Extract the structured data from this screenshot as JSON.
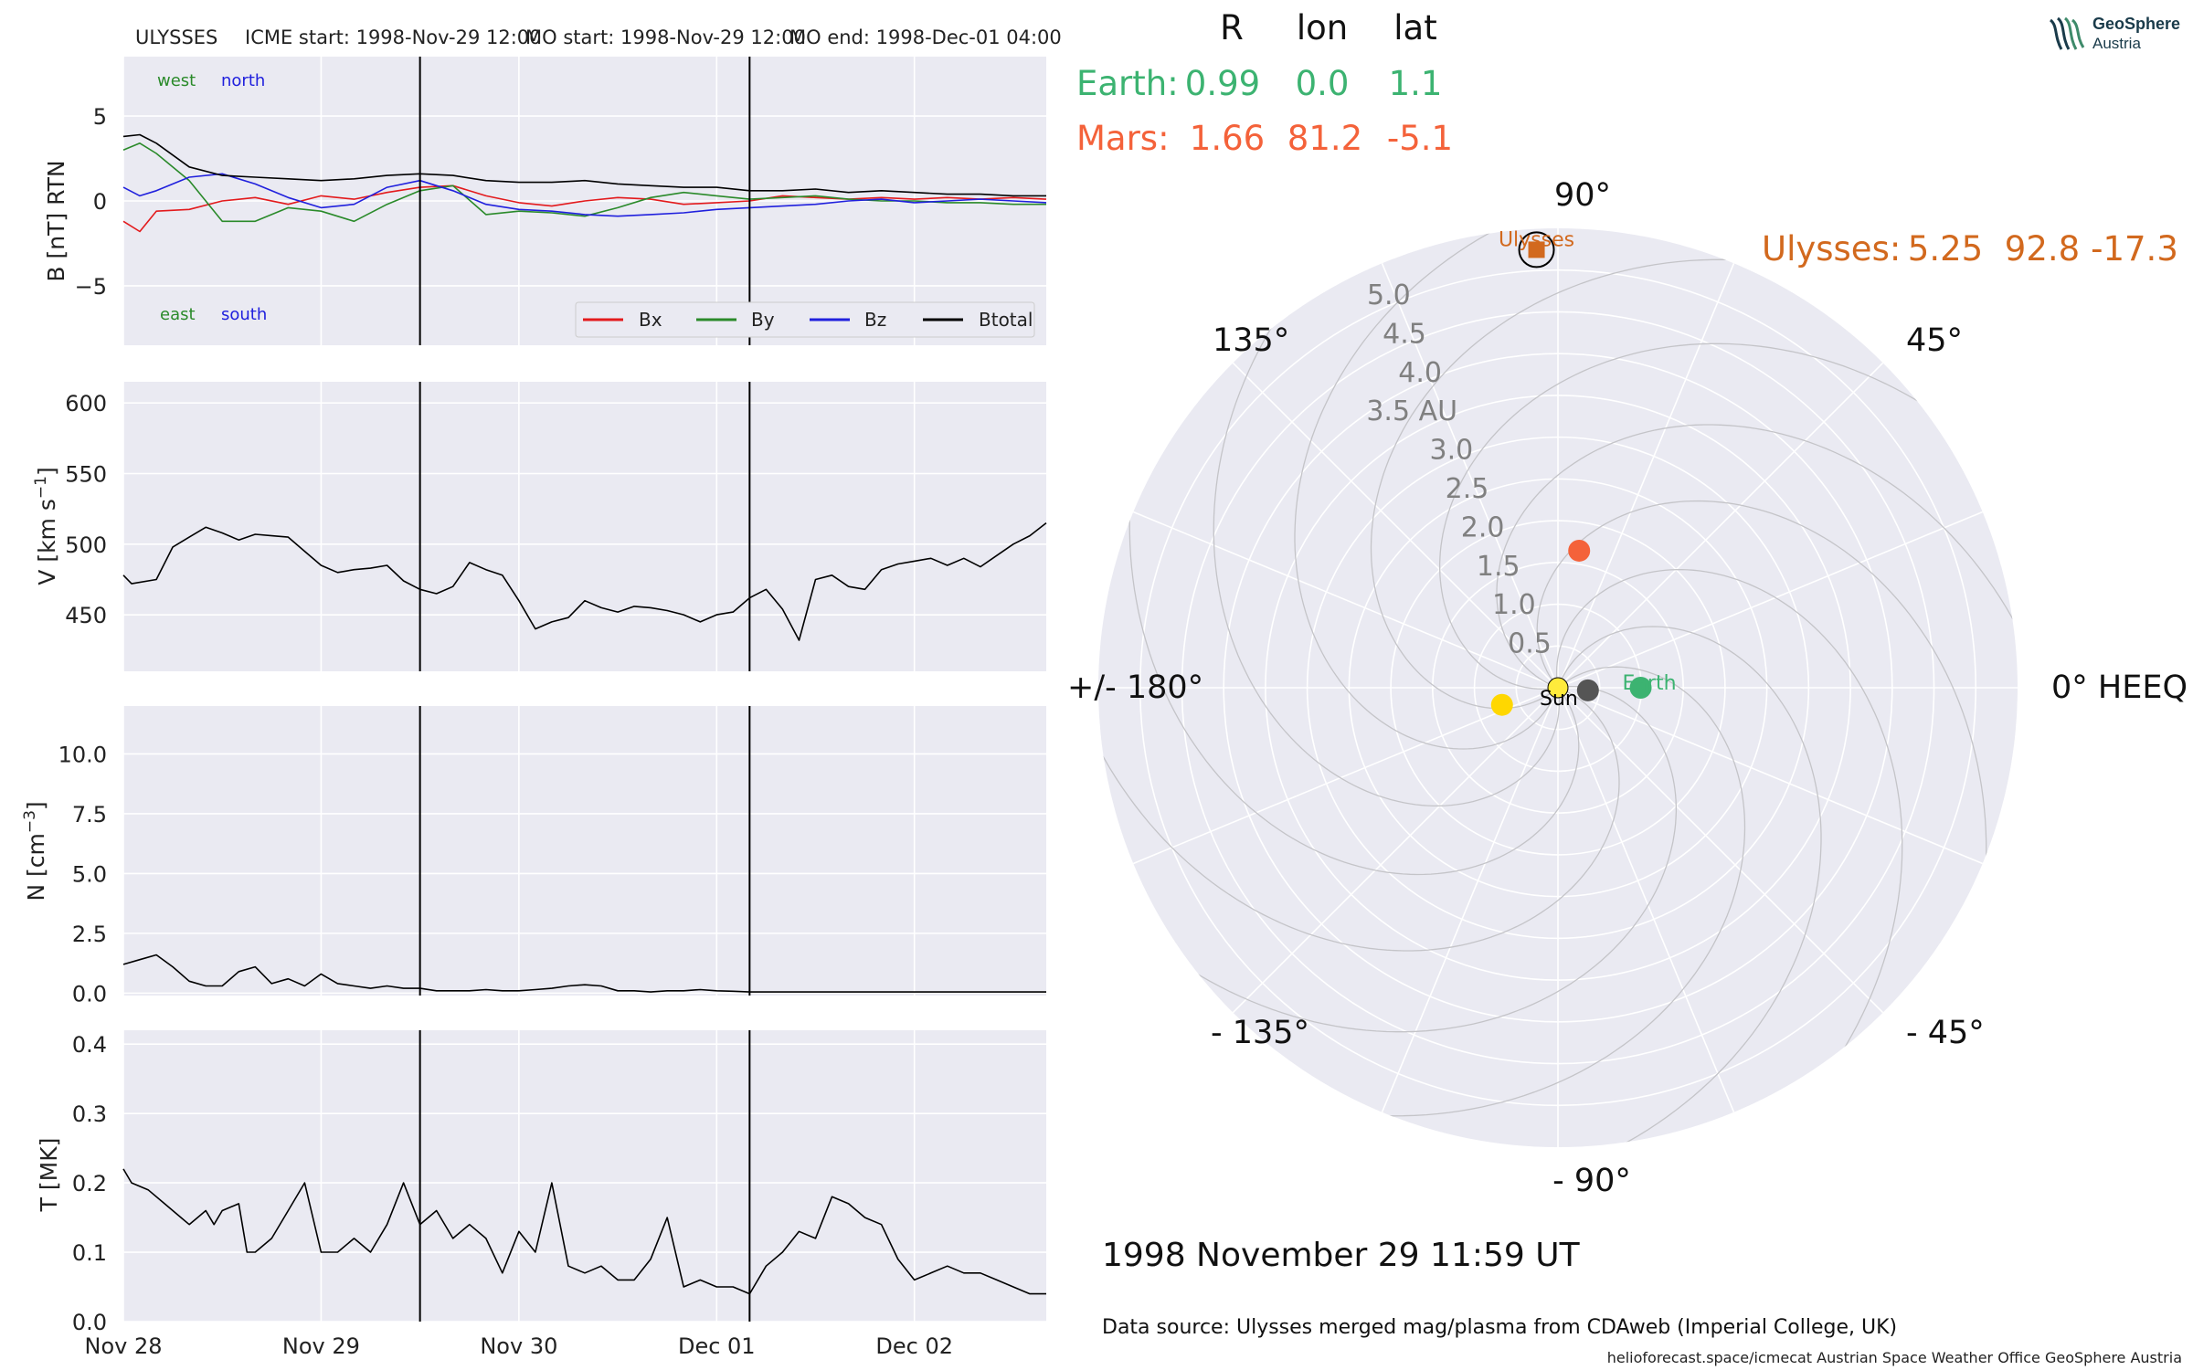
{
  "header": {
    "spacecraft": "ULYSSES",
    "icme_start": "ICME start: 1998-Nov-29 12:00",
    "mo_start": "MO start: 1998-Nov-29 12:00",
    "mo_end": "MO end: 1998-Dec-01 04:00"
  },
  "logo": {
    "name": "GeoSphere",
    "sub": "Austria"
  },
  "colors": {
    "bg": "#eaeaf2",
    "grid": "#ffffff",
    "earth": "#3cb371",
    "mars": "#f4623a",
    "ulysses": "#d2691e",
    "bx": "#e31a1c",
    "by": "#2a8a2a",
    "bz": "#2020dd",
    "btotal": "#000000"
  },
  "time_axis": {
    "start": "1998-11-28T00:00",
    "end": "1998-12-02T16:00",
    "ticks": [
      "Nov 28",
      "Nov 29",
      "Nov 30",
      "Dec 01",
      "Dec 02"
    ]
  },
  "event_lines": [
    "1998-11-29T12:00",
    "1998-12-01T04:00"
  ],
  "panels": {
    "b": {
      "ylabel": "B [nT] RTN",
      "ylim": [
        -8.5,
        8.5
      ],
      "yticks": [
        "5",
        "0",
        "−5"
      ],
      "west": "west",
      "north": "north",
      "east": "east",
      "south": "south",
      "legend": [
        "Bx",
        "By",
        "Bz",
        "Btotal"
      ]
    },
    "v": {
      "ylabel": "V [km s",
      "ylabel_sup": "−1",
      "ylabel_end": "]",
      "ylim": [
        410,
        615
      ],
      "yticks": [
        "600",
        "550",
        "500",
        "450"
      ]
    },
    "n": {
      "ylabel": "N [cm",
      "ylabel_sup": "−3",
      "ylabel_end": "]",
      "ylim": [
        -0.1,
        12
      ],
      "yticks": [
        "10.0",
        "7.5",
        "5.0",
        "2.5",
        "0.0"
      ]
    },
    "t": {
      "ylabel": "T [MK]",
      "ylim": [
        0,
        0.42
      ],
      "yticks": [
        "0.4",
        "0.3",
        "0.2",
        "0.1",
        "0.0"
      ]
    }
  },
  "chart_data": [
    {
      "type": "line",
      "panel": "magnetic field",
      "ylabel": "B [nT] RTN",
      "ylim": [
        -8.5,
        8.5
      ],
      "x_hours_from": "1998-11-28T00:00",
      "series": [
        {
          "name": "Bx",
          "x": [
            0,
            2,
            4,
            8,
            12,
            16,
            20,
            24,
            28,
            32,
            36,
            40,
            44,
            48,
            52,
            56,
            60,
            64,
            68,
            72,
            76,
            80,
            84,
            88,
            92,
            96,
            100,
            104,
            108,
            112
          ],
          "values": [
            -1.2,
            -1.8,
            -0.6,
            -0.5,
            0.0,
            0.2,
            -0.2,
            0.3,
            0.1,
            0.5,
            0.8,
            0.9,
            0.3,
            -0.1,
            -0.3,
            0.0,
            0.2,
            0.1,
            -0.2,
            -0.1,
            0.0,
            0.3,
            0.2,
            0.1,
            0.2,
            0.1,
            0.2,
            0.1,
            0.2,
            0.1
          ]
        },
        {
          "name": "By",
          "x": [
            0,
            2,
            4,
            8,
            12,
            16,
            20,
            24,
            28,
            32,
            36,
            40,
            44,
            48,
            52,
            56,
            60,
            64,
            68,
            72,
            76,
            80,
            84,
            88,
            92,
            96,
            100,
            104,
            108,
            112
          ],
          "values": [
            3.0,
            3.4,
            2.8,
            1.2,
            -1.2,
            -1.2,
            -0.4,
            -0.6,
            -1.2,
            -0.2,
            0.6,
            0.9,
            -0.8,
            -0.6,
            -0.7,
            -0.9,
            -0.4,
            0.2,
            0.5,
            0.3,
            0.1,
            0.2,
            0.3,
            0.1,
            0.0,
            0.0,
            -0.1,
            -0.1,
            -0.2,
            -0.2
          ]
        },
        {
          "name": "Bz",
          "x": [
            0,
            2,
            4,
            8,
            12,
            16,
            20,
            24,
            28,
            32,
            36,
            40,
            44,
            48,
            52,
            56,
            60,
            64,
            68,
            72,
            76,
            80,
            84,
            88,
            92,
            96,
            100,
            104,
            108,
            112
          ],
          "values": [
            0.8,
            0.3,
            0.6,
            1.4,
            1.6,
            1.0,
            0.2,
            -0.4,
            -0.2,
            0.8,
            1.2,
            0.6,
            -0.2,
            -0.5,
            -0.6,
            -0.8,
            -0.9,
            -0.8,
            -0.7,
            -0.5,
            -0.4,
            -0.3,
            -0.2,
            0.0,
            0.1,
            -0.1,
            0.0,
            0.1,
            0.0,
            -0.1
          ]
        },
        {
          "name": "Btotal",
          "x": [
            0,
            2,
            4,
            8,
            12,
            16,
            20,
            24,
            28,
            32,
            36,
            40,
            44,
            48,
            52,
            56,
            60,
            64,
            68,
            72,
            76,
            80,
            84,
            88,
            92,
            96,
            100,
            104,
            108,
            112
          ],
          "values": [
            3.8,
            3.9,
            3.4,
            2.0,
            1.5,
            1.4,
            1.3,
            1.2,
            1.3,
            1.5,
            1.6,
            1.5,
            1.2,
            1.1,
            1.1,
            1.2,
            1.0,
            0.9,
            0.8,
            0.8,
            0.6,
            0.6,
            0.7,
            0.5,
            0.6,
            0.5,
            0.4,
            0.4,
            0.3,
            0.3
          ]
        }
      ]
    },
    {
      "type": "line",
      "panel": "velocity",
      "ylim": [
        410,
        615
      ],
      "x_hours_from": "1998-11-28T00:00",
      "series": [
        {
          "x": [
            0,
            1,
            4,
            6,
            8,
            10,
            12,
            14,
            16,
            18,
            20,
            22,
            24,
            26,
            28,
            30,
            32,
            34,
            36,
            38,
            40,
            42,
            44,
            46,
            48,
            50,
            52,
            54,
            56,
            58,
            60,
            62,
            64,
            66,
            68,
            70,
            72,
            74,
            76,
            78,
            80,
            82,
            84,
            86,
            88,
            90,
            92,
            94,
            96,
            98,
            100,
            102,
            104,
            106,
            108,
            110,
            112
          ],
          "values": [
            478,
            472,
            475,
            498,
            505,
            512,
            508,
            503,
            507,
            506,
            505,
            495,
            485,
            480,
            482,
            483,
            485,
            474,
            468,
            465,
            470,
            487,
            482,
            478,
            460,
            440,
            445,
            448,
            460,
            455,
            452,
            456,
            455,
            453,
            450,
            445,
            450,
            452,
            462,
            468,
            454,
            432,
            475,
            478,
            470,
            468,
            482,
            486,
            488,
            490,
            485,
            490,
            484,
            492,
            500,
            506,
            515
          ]
        }
      ]
    },
    {
      "type": "line",
      "panel": "density",
      "ylim": [
        -0.1,
        12
      ],
      "x_hours_from": "1998-11-28T00:00",
      "series": [
        {
          "x": [
            0,
            2,
            4,
            6,
            8,
            10,
            12,
            14,
            16,
            18,
            20,
            22,
            24,
            26,
            28,
            30,
            32,
            34,
            36,
            38,
            40,
            42,
            44,
            46,
            48,
            50,
            52,
            54,
            56,
            58,
            60,
            62,
            64,
            66,
            68,
            70,
            72,
            74,
            76,
            80,
            90,
            100,
            112
          ],
          "values": [
            1.2,
            1.4,
            1.6,
            1.1,
            0.5,
            0.3,
            0.3,
            0.9,
            1.1,
            0.4,
            0.6,
            0.3,
            0.8,
            0.4,
            0.3,
            0.2,
            0.3,
            0.2,
            0.2,
            0.1,
            0.1,
            0.1,
            0.15,
            0.1,
            0.1,
            0.15,
            0.2,
            0.3,
            0.35,
            0.3,
            0.1,
            0.1,
            0.05,
            0.1,
            0.1,
            0.15,
            0.1,
            0.08,
            0.05,
            0.05,
            0.05,
            0.05,
            0.05
          ]
        }
      ]
    },
    {
      "type": "line",
      "panel": "temperature",
      "ylabel": "T [MK]",
      "ylim": [
        0,
        0.42
      ],
      "x_hours_from": "1998-11-28T00:00",
      "series": [
        {
          "x": [
            0,
            1,
            3,
            5,
            7,
            8,
            9,
            10,
            11,
            12,
            14,
            15,
            16,
            18,
            20,
            22,
            24,
            26,
            28,
            30,
            32,
            34,
            36,
            38,
            40,
            42,
            44,
            46,
            48,
            50,
            52,
            54,
            56,
            58,
            60,
            62,
            64,
            66,
            68,
            70,
            72,
            74,
            76,
            78,
            80,
            82,
            84,
            86,
            88,
            90,
            92,
            94,
            96,
            98,
            100,
            102,
            104,
            106,
            108,
            110,
            112
          ],
          "values": [
            0.22,
            0.2,
            0.19,
            0.17,
            0.15,
            0.14,
            0.15,
            0.16,
            0.14,
            0.16,
            0.17,
            0.1,
            0.1,
            0.12,
            0.16,
            0.2,
            0.1,
            0.1,
            0.12,
            0.1,
            0.14,
            0.2,
            0.14,
            0.16,
            0.12,
            0.14,
            0.12,
            0.07,
            0.13,
            0.1,
            0.2,
            0.08,
            0.07,
            0.08,
            0.06,
            0.06,
            0.09,
            0.15,
            0.05,
            0.06,
            0.05,
            0.05,
            0.04,
            0.08,
            0.1,
            0.13,
            0.12,
            0.18,
            0.17,
            0.15,
            0.14,
            0.09,
            0.06,
            0.07,
            0.08,
            0.07,
            0.07,
            0.06,
            0.05,
            0.04,
            0.04
          ]
        }
      ]
    },
    {
      "type": "scatter",
      "panel": "polar position plot",
      "frame": "HEEQ",
      "r_ticks": [
        "0.5",
        "1.0",
        "1.5",
        "2.0",
        "2.5",
        "3.0",
        "3.5 AU",
        "4.0",
        "4.5",
        "5.0"
      ],
      "angle_labels": [
        "90°",
        "45°",
        "0° HEEQ",
        "- 45°",
        "- 90°",
        "- 135°",
        "+/- 180°",
        "135°"
      ],
      "table_header": [
        "R",
        "lon",
        "lat"
      ],
      "bodies": [
        {
          "name": "Earth",
          "R": "0.99",
          "lon": "0.0",
          "lat": "1.1",
          "plot_r": 0.99,
          "plot_lon": 0.0
        },
        {
          "name": "Mars",
          "R": "1.66",
          "lon": "81.2",
          "lat": "-5.1",
          "plot_r": 1.66,
          "plot_lon": 81.2
        },
        {
          "name": "Ulysses",
          "R": "5.25",
          "lon": "92.8",
          "lat": "-17.3",
          "plot_r": 5.25,
          "plot_lon": 92.8
        },
        {
          "name": "Sun",
          "plot_r": 0.0,
          "plot_lon": 0.0
        }
      ],
      "extra_markers": [
        {
          "plot_r": 0.7,
          "plot_lon": 197,
          "color": "#ffd700"
        },
        {
          "plot_r": 0.36,
          "plot_lon": -5,
          "color": "#555555"
        }
      ]
    }
  ],
  "date_label": "1998 November 29  11:59 UT",
  "data_source": "Data source: Ulysses merged mag/plasma from CDAweb (Imperial College, UK)",
  "footer": "helioforecast.space/icmecat   Austrian Space Weather Office   GeoSphere Austria",
  "polar": {
    "earth_label": "Earth",
    "ulysses_label": "Ulysses",
    "sun_label": "Sun"
  }
}
